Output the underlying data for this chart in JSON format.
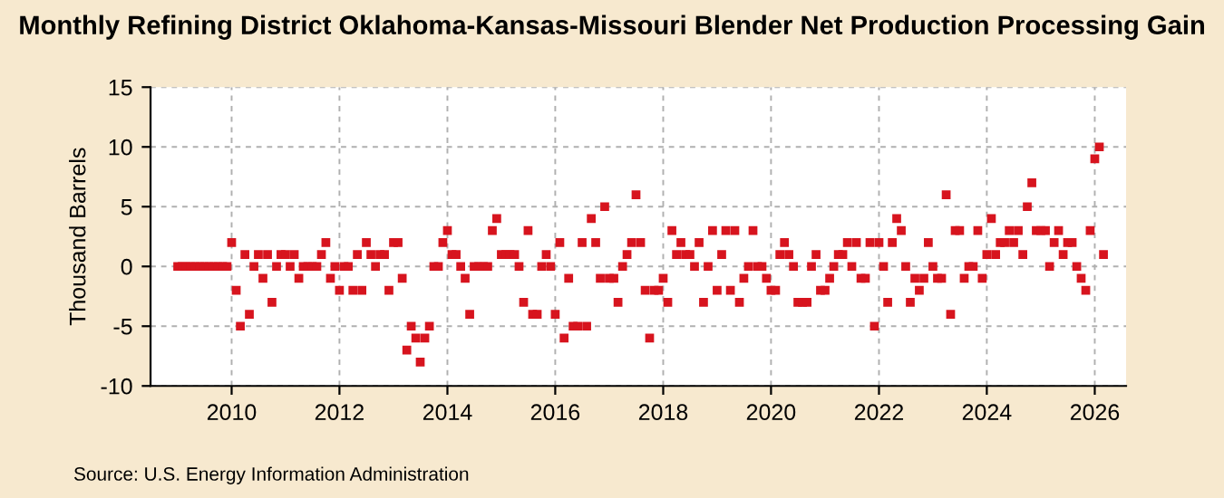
{
  "chart_data": {
    "type": "scatter",
    "title": "Monthly Refining District Oklahoma-Kansas-Missouri Blender Net Production Processing Gain",
    "ylabel": "Thousand Barrels",
    "annotations": [
      "Source: U.S. Energy Information Administration"
    ],
    "x": [
      "2009-01",
      "2009-02",
      "2009-03",
      "2009-04",
      "2009-05",
      "2009-06",
      "2009-07",
      "2009-08",
      "2009-09",
      "2009-10",
      "2009-11",
      "2009-12",
      "2010-01",
      "2010-02",
      "2010-03",
      "2010-04",
      "2010-05",
      "2010-06",
      "2010-07",
      "2010-08",
      "2010-09",
      "2010-10",
      "2010-11",
      "2010-12",
      "2011-01",
      "2011-02",
      "2011-03",
      "2011-04",
      "2011-05",
      "2011-06",
      "2011-07",
      "2011-08",
      "2011-09",
      "2011-10",
      "2011-11",
      "2011-12",
      "2012-01",
      "2012-02",
      "2012-03",
      "2012-04",
      "2012-05",
      "2012-06",
      "2012-07",
      "2012-08",
      "2012-09",
      "2012-10",
      "2012-11",
      "2012-12",
      "2013-01",
      "2013-02",
      "2013-03",
      "2013-04",
      "2013-05",
      "2013-06",
      "2013-07",
      "2013-08",
      "2013-09",
      "2013-10",
      "2013-11",
      "2013-12",
      "2014-01",
      "2014-02",
      "2014-03",
      "2014-04",
      "2014-05",
      "2014-06",
      "2014-07",
      "2014-08",
      "2014-09",
      "2014-10",
      "2014-11",
      "2014-12",
      "2015-01",
      "2015-02",
      "2015-03",
      "2015-04",
      "2015-05",
      "2015-06",
      "2015-07",
      "2015-08",
      "2015-09",
      "2015-10",
      "2015-11",
      "2015-12",
      "2016-01",
      "2016-02",
      "2016-03",
      "2016-04",
      "2016-05",
      "2016-06",
      "2016-07",
      "2016-08",
      "2016-09",
      "2016-10",
      "2016-11",
      "2016-12",
      "2017-01",
      "2017-02",
      "2017-03",
      "2017-04",
      "2017-05",
      "2017-06",
      "2017-07",
      "2017-08",
      "2017-09",
      "2017-10",
      "2017-11",
      "2017-12",
      "2018-01",
      "2018-02",
      "2018-03",
      "2018-04",
      "2018-05",
      "2018-06",
      "2018-07",
      "2018-08",
      "2018-09",
      "2018-10",
      "2018-11",
      "2018-12",
      "2019-01",
      "2019-02",
      "2019-03",
      "2019-04",
      "2019-05",
      "2019-06",
      "2019-07",
      "2019-08",
      "2019-09",
      "2019-10",
      "2019-11",
      "2019-12",
      "2020-01",
      "2020-02",
      "2020-03",
      "2020-04",
      "2020-05",
      "2020-06",
      "2020-07",
      "2020-08",
      "2020-09",
      "2020-10",
      "2020-11",
      "2020-12",
      "2021-01",
      "2021-02",
      "2021-03",
      "2021-04",
      "2021-05",
      "2021-06",
      "2021-07",
      "2021-08",
      "2021-09",
      "2021-10",
      "2021-11",
      "2021-12",
      "2022-01",
      "2022-02",
      "2022-03",
      "2022-04",
      "2022-05",
      "2022-06",
      "2022-07",
      "2022-08",
      "2022-09",
      "2022-10",
      "2022-11",
      "2022-12",
      "2023-01",
      "2023-02",
      "2023-03",
      "2023-04",
      "2023-05",
      "2023-06",
      "2023-07",
      "2023-08",
      "2023-09",
      "2023-10",
      "2023-11",
      "2023-12",
      "2024-01",
      "2024-02",
      "2024-03",
      "2024-04",
      "2024-05",
      "2024-06",
      "2024-07",
      "2024-08",
      "2024-09",
      "2024-10",
      "2024-11",
      "2024-12",
      "2025-01",
      "2025-02",
      "2025-03",
      "2025-04",
      "2025-05",
      "2025-06",
      "2025-07",
      "2025-08",
      "2025-09",
      "2025-10",
      "2025-11",
      "2025-12",
      "2026-01",
      "2026-02",
      "2026-03"
    ],
    "series": [
      {
        "color": "#d7141e",
        "values": [
          0,
          0,
          0,
          0,
          0,
          0,
          0,
          0,
          0,
          0,
          0,
          0,
          2,
          -2,
          -5,
          1,
          -4,
          0,
          1,
          -1,
          1,
          -3,
          0,
          1,
          1,
          0,
          1,
          -1,
          0,
          0,
          0,
          0,
          1,
          2,
          -1,
          0,
          -2,
          0,
          0,
          -2,
          1,
          -2,
          2,
          1,
          0,
          1,
          1,
          -2,
          2,
          2,
          -1,
          -7,
          -5,
          -6,
          -8,
          -6,
          -5,
          0,
          0,
          2,
          3,
          1,
          1,
          0,
          -1,
          -4,
          0,
          0,
          0,
          0,
          3,
          4,
          1,
          1,
          1,
          1,
          0,
          -3,
          3,
          -4,
          -4,
          0,
          1,
          0,
          -4,
          2,
          -6,
          -1,
          -5,
          -5,
          2,
          -5,
          4,
          2,
          -1,
          5,
          -1,
          -1,
          -3,
          0,
          1,
          2,
          6,
          2,
          -2,
          -6,
          -2,
          -2,
          -1,
          -3,
          3,
          1,
          2,
          1,
          1,
          0,
          2,
          -3,
          0,
          3,
          -2,
          1,
          3,
          -2,
          3,
          -3,
          -1,
          0,
          3,
          0,
          0,
          -1,
          -2,
          -2,
          1,
          2,
          1,
          0,
          -3,
          -3,
          -3,
          0,
          1,
          -2,
          -2,
          -1,
          0,
          1,
          1,
          2,
          0,
          2,
          -1,
          -1,
          2,
          -5,
          2,
          0,
          -3,
          2,
          4,
          3,
          0,
          -3,
          -1,
          -2,
          -1,
          2,
          0,
          -1,
          -1,
          6,
          -4,
          3,
          3,
          -1,
          0,
          0,
          3,
          -1,
          1,
          4,
          1,
          2,
          2,
          3,
          2,
          3,
          1,
          5,
          7,
          3,
          3,
          3,
          0,
          2,
          3,
          1,
          2,
          2,
          0,
          -1,
          -2,
          3,
          9,
          10,
          1
        ]
      }
    ],
    "marker": "square",
    "xlim": [
      "2008-07",
      "2026-08"
    ],
    "xticks": [
      "2010",
      "2012",
      "2014",
      "2016",
      "2018",
      "2020",
      "2022",
      "2024",
      "2026"
    ],
    "ylim": [
      -10,
      15
    ],
    "yticks": [
      -10,
      -5,
      0,
      5,
      10,
      15
    ],
    "grid": true,
    "legend": false
  }
}
